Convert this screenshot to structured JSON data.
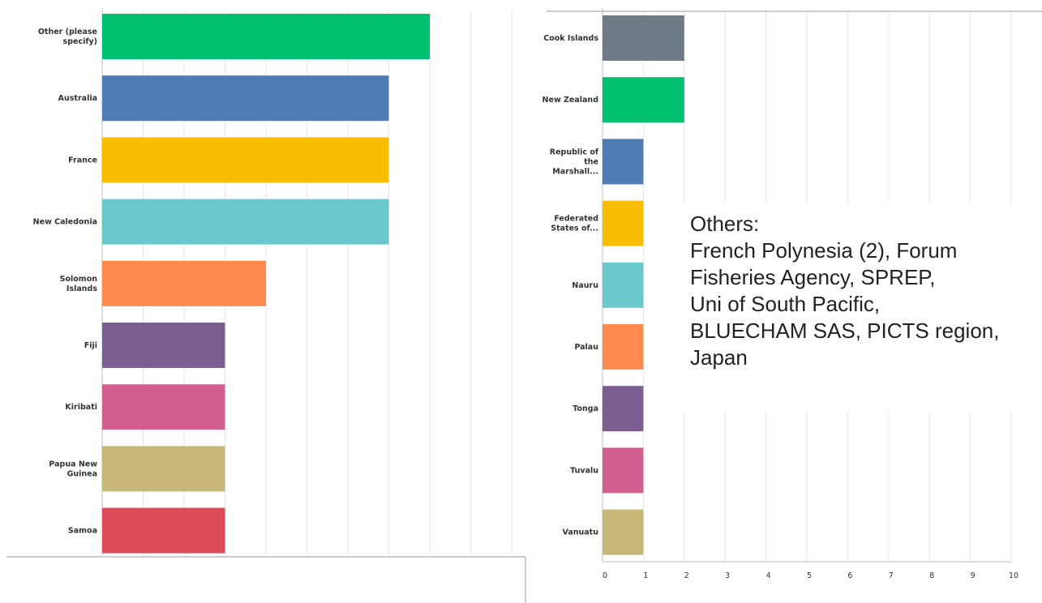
{
  "chart_data": [
    {
      "type": "bar",
      "orientation": "horizontal",
      "categories": [
        "Other (please specify)",
        "Australia",
        "France",
        "New Caledonia",
        "Solomon Islands",
        "Fiji",
        "Kiribati",
        "Papua New Guinea",
        "Samoa"
      ],
      "values": [
        8,
        7,
        7,
        7,
        4,
        3,
        3,
        3,
        3
      ],
      "colors": [
        "#00bf6f",
        "#507cb6",
        "#f9be00",
        "#6bc8cd",
        "#ff8b4f",
        "#7d5e90",
        "#d25f90",
        "#c7b879",
        "#dd4b5b"
      ],
      "xlim": [
        0,
        10
      ],
      "grid": true
    },
    {
      "type": "bar",
      "orientation": "horizontal",
      "categories": [
        "Cook Islands",
        "New Zealand",
        "Republic of the Marshall...",
        "Federated States of...",
        "Nauru",
        "Palau",
        "Tonga",
        "Tuvalu",
        "Vanuatu"
      ],
      "values": [
        2,
        2,
        1,
        1,
        1,
        1,
        1,
        1,
        1
      ],
      "colors": [
        "#6e7a85",
        "#00bf6f",
        "#507cb6",
        "#f9be00",
        "#6bc8cd",
        "#ff8b4f",
        "#7d5e90",
        "#d25f90",
        "#c7b879"
      ],
      "xlim": [
        0,
        10
      ],
      "xticks": [
        "0",
        "1",
        "2",
        "3",
        "4",
        "5",
        "6",
        "7",
        "8",
        "9",
        "10"
      ],
      "grid": true
    }
  ],
  "annotation": {
    "lines": [
      "Others:",
      "French Polynesia (2), Forum",
      "Fisheries Agency, SPREP,",
      "Uni of South Pacific,",
      "BLUECHAM SAS, PICTS region,",
      "Japan"
    ]
  }
}
